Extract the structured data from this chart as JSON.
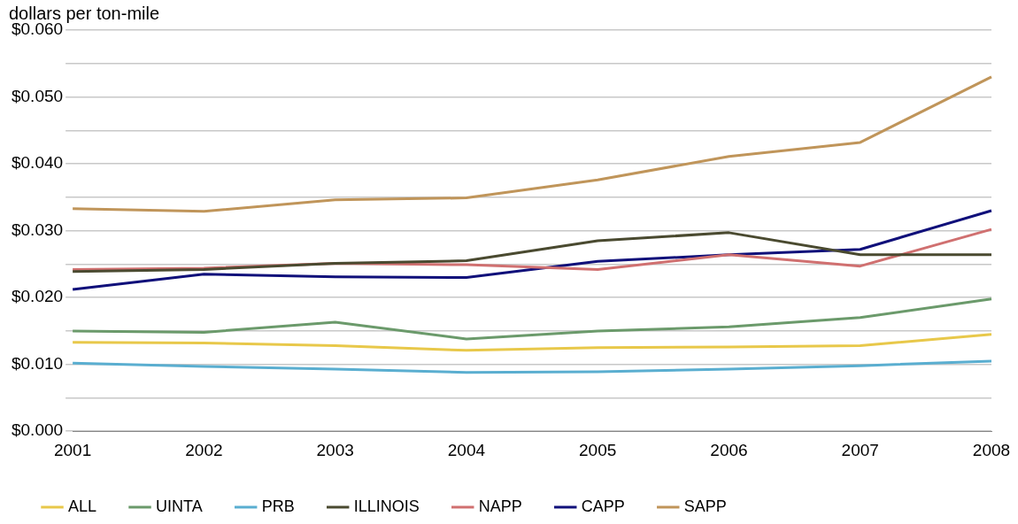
{
  "chart_data": {
    "type": "line",
    "title": "dollars per ton-mile",
    "categories": [
      "2001",
      "2002",
      "2003",
      "2004",
      "2005",
      "2006",
      "2007",
      "2008"
    ],
    "series": [
      {
        "name": "ALL",
        "color": "#e8c84a",
        "values": [
          0.0133,
          0.0132,
          0.0128,
          0.0121,
          0.0125,
          0.0126,
          0.0128,
          0.0145
        ]
      },
      {
        "name": "UINTA",
        "color": "#6b9a6b",
        "values": [
          0.015,
          0.0148,
          0.0163,
          0.0138,
          0.015,
          0.0156,
          0.017,
          0.0198
        ]
      },
      {
        "name": "PRB",
        "color": "#5aaed0",
        "values": [
          0.0102,
          0.0097,
          0.0093,
          0.0088,
          0.0089,
          0.0093,
          0.0098,
          0.0105
        ]
      },
      {
        "name": "ILLINOIS",
        "color": "#4a4a30",
        "values": [
          0.0239,
          0.0242,
          0.0251,
          0.0255,
          0.0285,
          0.0297,
          0.0264,
          0.0264
        ]
      },
      {
        "name": "NAPP",
        "color": "#d07070",
        "values": [
          0.0242,
          0.0244,
          0.0251,
          0.0249,
          0.0242,
          0.0264,
          0.0247,
          0.0302
        ]
      },
      {
        "name": "CAPP",
        "color": "#10107a",
        "values": [
          0.0212,
          0.0235,
          0.0231,
          0.023,
          0.0254,
          0.0264,
          0.0272,
          0.033
        ]
      },
      {
        "name": "SAPP",
        "color": "#c0955a",
        "values": [
          0.0333,
          0.0329,
          0.0346,
          0.0349,
          0.0376,
          0.0411,
          0.0432,
          0.053
        ]
      }
    ],
    "ylim": [
      0,
      0.06
    ],
    "yticks": [
      {
        "value": 0,
        "label": "$0.000"
      },
      {
        "value": 0.005,
        "label": null
      },
      {
        "value": 0.01,
        "label": "$0.010"
      },
      {
        "value": 0.015,
        "label": null
      },
      {
        "value": 0.02,
        "label": "$0.020"
      },
      {
        "value": 0.025,
        "label": null
      },
      {
        "value": 0.03,
        "label": "$0.030"
      },
      {
        "value": 0.035,
        "label": null
      },
      {
        "value": 0.04,
        "label": "$0.040"
      },
      {
        "value": 0.045,
        "label": null
      },
      {
        "value": 0.05,
        "label": "$0.050"
      },
      {
        "value": 0.055,
        "label": null
      },
      {
        "value": 0.06,
        "label": "$0.060"
      }
    ],
    "grid": "y",
    "legend": "bottom",
    "marker": "none",
    "line_style": "solid"
  }
}
